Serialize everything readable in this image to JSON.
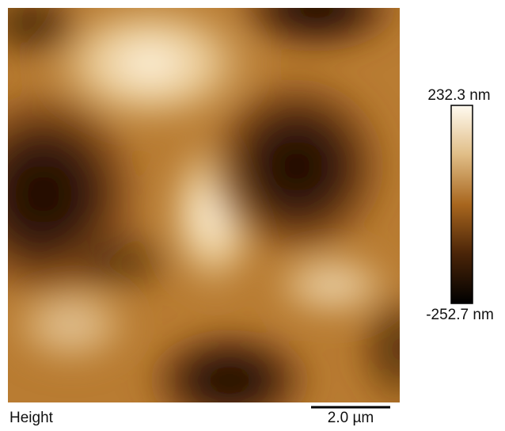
{
  "image": {
    "label": "Height",
    "scale_bar": "2.0 µm",
    "colorbar": {
      "max_label": "232.3 nm",
      "min_label": "-252.7 nm"
    }
  }
}
